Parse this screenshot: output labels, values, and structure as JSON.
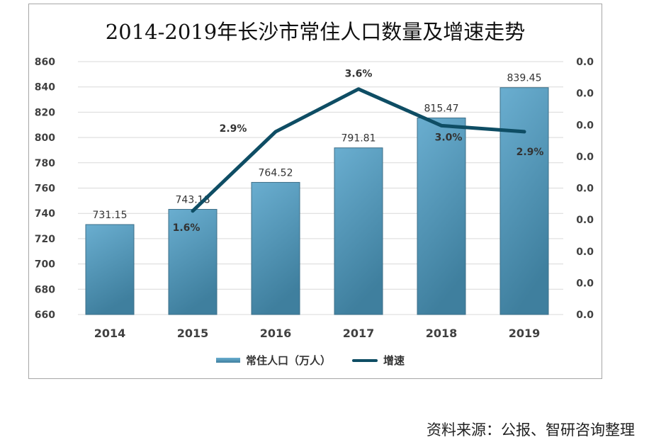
{
  "chart_data": {
    "type": "bar+line",
    "title": "2014-2019年长沙市常住人口数量及增速走势",
    "categories": [
      "2014",
      "2015",
      "2016",
      "2017",
      "2018",
      "2019"
    ],
    "series": [
      {
        "name": "常住人口（万人）",
        "type": "bar",
        "axis": "left",
        "values": [
          731.15,
          743.18,
          764.52,
          791.81,
          815.47,
          839.45
        ],
        "labels": [
          "731.15",
          "743.18",
          "764.52",
          "791.81",
          "815.47",
          "839.45"
        ],
        "color": "#5a9fc2"
      },
      {
        "name": "增速",
        "type": "line",
        "axis": "right",
        "values": [
          null,
          1.6,
          2.9,
          3.6,
          3.0,
          2.9
        ],
        "labels": [
          "",
          "1.6%",
          "2.9%",
          "3.6%",
          "3.0%",
          "2.9%"
        ],
        "color": "#0e4d64"
      }
    ],
    "ylim": [
      660,
      860
    ],
    "yticks": [
      "860",
      "840",
      "820",
      "800",
      "780",
      "760",
      "740",
      "720",
      "700",
      "680",
      "660"
    ],
    "y2lim": [
      -0.1,
      4.05
    ],
    "y2ticks": [
      "0.0",
      "0.0",
      "0.0",
      "0.0",
      "0.0",
      "0.0",
      "0.0",
      "0.0",
      "0.0"
    ],
    "grid": true,
    "legend": "bottom"
  },
  "source": "资料来源：公报、智研咨询整理"
}
